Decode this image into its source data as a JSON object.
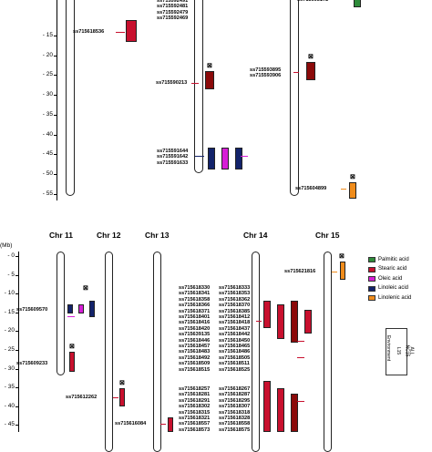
{
  "top_axis": {
    "ticks": [
      "15",
      "20",
      "25",
      "30",
      "35",
      "40",
      "45",
      "50",
      "55"
    ],
    "leading_tick": "-"
  },
  "bottom_axis": {
    "unit": "(Mb)",
    "ticks": [
      "0",
      "5",
      "10",
      "15",
      "20",
      "25",
      "30",
      "35",
      "40",
      "45"
    ]
  },
  "chromosomes": [
    "Chr 11",
    "Chr 12",
    "Chr 13",
    "Chr 14",
    "Chr 15"
  ],
  "top_snps": {
    "left_cluster": [
      "ss715592491",
      "ss715592481",
      "ss715592479",
      "ss715592469"
    ],
    "a": "ss715618536",
    "b": "ss715590213",
    "c": [
      "ss715593895",
      "ss715593906"
    ],
    "d": [
      "ss715591644",
      "ss715591642",
      "ss715591633"
    ],
    "e": "ss715604899",
    "top_right": "ss715605172"
  },
  "bottom_snps": {
    "chr11": [
      "ss715609570",
      "ss715609233"
    ],
    "chr12": "ss715612262",
    "chr13": "ss715616084",
    "chr15": "ss715621816",
    "chr14_group1": [
      "ss715618330",
      "ss715618341",
      "ss715618358",
      "ss715618366",
      "ss715618371",
      "ss715618401",
      "ss715618416",
      "ss715618420",
      "ss715639135",
      "ss715618446",
      "ss715618457",
      "ss715618483",
      "ss715618492",
      "ss715618509",
      "ss715618515"
    ],
    "chr14_group1_right": [
      "ss715618333",
      "ss715618353",
      "ss715618362",
      "ss715618370",
      "ss715618385",
      "ss715618412",
      "ss715618418",
      "ss715618437",
      "ss715618442",
      "ss715618450",
      "ss715618465",
      "ss715618486",
      "ss715618505",
      "ss715618511",
      "ss715618525"
    ],
    "chr14_group2": [
      "ss715618257",
      "ss715618281",
      "ss715618291",
      "ss715618302",
      "ss715618315",
      "ss715618321",
      "ss715618557",
      "ss715618573"
    ],
    "chr14_group2_right": [
      "ss715618267",
      "ss715618287",
      "ss715618295",
      "ss715618307",
      "ss715618318",
      "ss715618328",
      "ss715618558",
      "ss715618575"
    ]
  },
  "legend": {
    "items": [
      {
        "label": "Palmitic acid",
        "color": "#2e8b3a"
      },
      {
        "label": "Stearic acid",
        "color": "#c8102e"
      },
      {
        "label": "Oleic acid",
        "color": "#d61fd6"
      },
      {
        "label": "Linoleic acid",
        "color": "#13236b"
      },
      {
        "label": "Linolenic acid",
        "color": "#f08c1b"
      }
    ],
    "envs": [
      "L15",
      "NC15",
      "ALL"
    ],
    "env_header": "Environment"
  },
  "colors": {
    "stearic": "#c8102e",
    "dark_red": "#8b0a0a",
    "oleic": "#d61fd6",
    "linoleic": "#13236b",
    "linolenic": "#f08c1b",
    "palmitic": "#2e8b3a"
  }
}
